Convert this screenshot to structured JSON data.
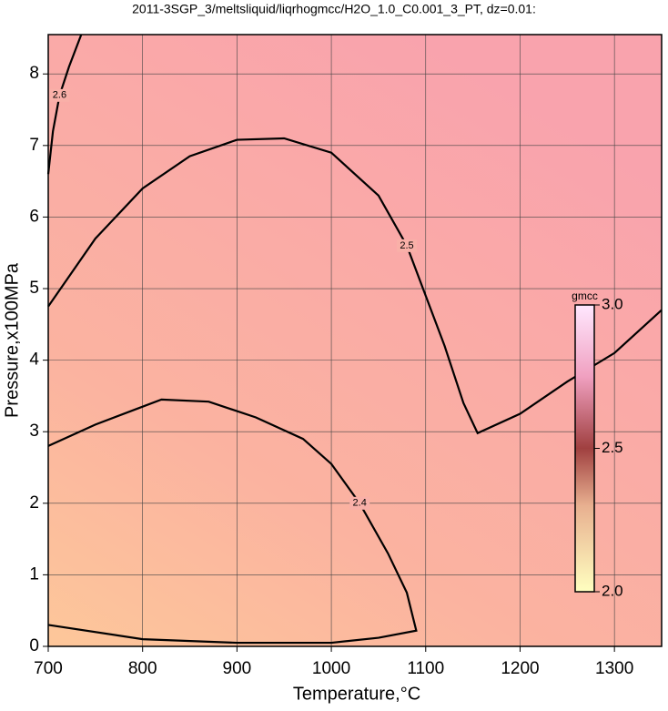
{
  "chart_data": {
    "type": "contour",
    "title": "2011-3SGP_3/meltsliquid/liqrhogmcc/H2O_1.0_C0.001_3_PT, dz=0.01:",
    "x_label": "Temperature,°C",
    "y_label": "Pressure,x100MPa",
    "xlim": [
      700,
      1350
    ],
    "ylim": [
      0,
      8.55
    ],
    "xticks": [
      700,
      800,
      900,
      1000,
      1100,
      1200,
      1300
    ],
    "yticks": [
      0,
      1,
      2,
      3,
      4,
      5,
      6,
      7,
      8
    ],
    "grid": true,
    "color": "#000000",
    "contours": [
      {
        "level": 2.5,
        "x": [
          700,
          750,
          800,
          850,
          900,
          950,
          1000,
          1050,
          1080,
          1100,
          1120,
          1140,
          1155,
          1200,
          1250,
          1300,
          1350
        ],
        "y": [
          4.75,
          5.7,
          6.4,
          6.85,
          7.08,
          7.1,
          6.9,
          6.3,
          5.6,
          4.9,
          4.2,
          3.4,
          2.98,
          3.25,
          3.7,
          4.1,
          4.7
        ]
      },
      {
        "level": 2.4,
        "x": [
          700,
          750,
          800,
          820,
          870,
          920,
          970,
          1000,
          1030,
          1060,
          1080,
          1090,
          1050,
          1000,
          900,
          800,
          700
        ],
        "y": [
          2.8,
          3.1,
          3.35,
          3.45,
          3.42,
          3.2,
          2.9,
          2.55,
          2.0,
          1.3,
          0.75,
          0.22,
          0.12,
          0.05,
          0.05,
          0.1,
          0.3
        ]
      },
      {
        "level": 2.6,
        "x": [
          700,
          705,
          712,
          722,
          735
        ],
        "y": [
          6.6,
          7.2,
          7.7,
          8.1,
          8.55
        ]
      }
    ],
    "colorbar": {
      "label": "gmcc",
      "lim": [
        2.0,
        3.0
      ],
      "ticks": [
        {
          "value": 2.0,
          "label": "2.0"
        },
        {
          "value": 2.5,
          "label": "2.5"
        },
        {
          "value": 3.0,
          "label": "3.0"
        }
      ]
    }
  }
}
